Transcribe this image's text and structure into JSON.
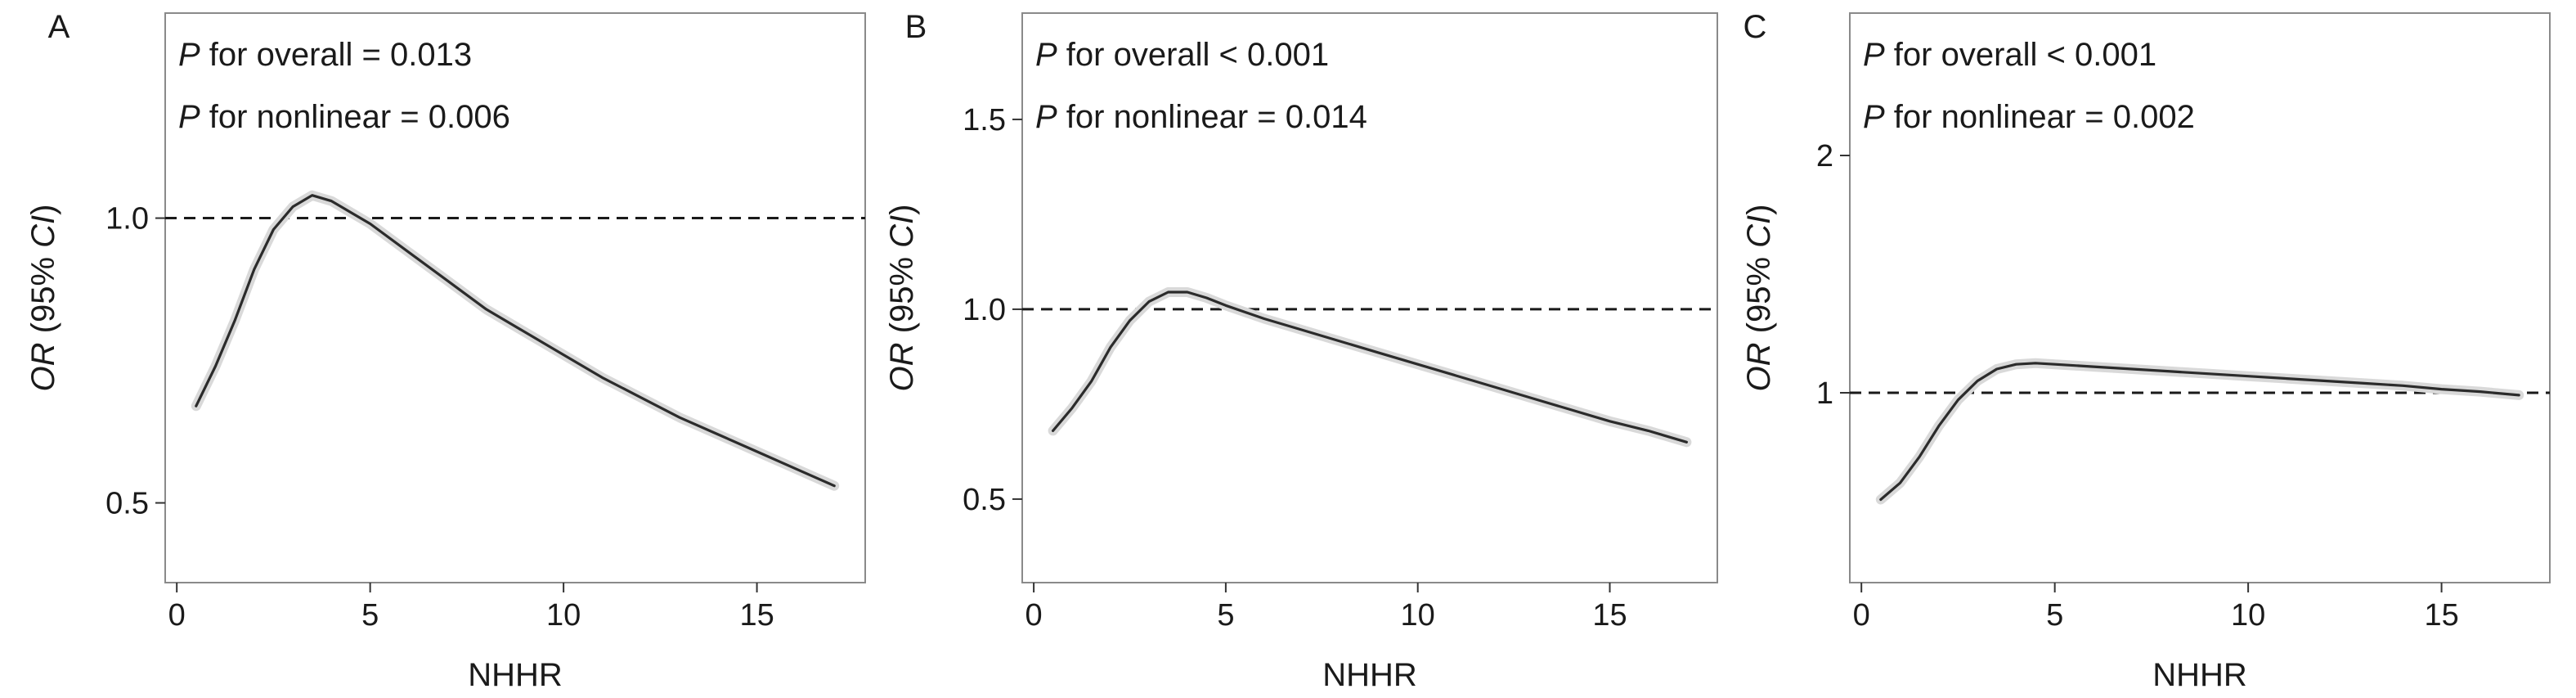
{
  "chart_data": [
    {
      "type": "line",
      "panel_label": "A",
      "xlabel": "NHHR",
      "ylabel_italic": "OR",
      "ylabel_rest": " (95% ",
      "ylabel_ci": "CI",
      "ylabel_close": ")",
      "ylim": [
        0.36,
        1.36
      ],
      "xlim": [
        -0.3,
        17.8
      ],
      "x_ticks": [
        0,
        5,
        10,
        15
      ],
      "y_ticks": [
        0.5,
        1.0
      ],
      "y_tick_labels": [
        "0.5",
        "1.0"
      ],
      "reference_line": 1.0,
      "annotation_p": "P",
      "annotations": [
        " for overall = 0.013",
        " for nonlinear = 0.006"
      ],
      "series": [
        {
          "x": [
            0.5,
            1.0,
            1.5,
            2.0,
            2.5,
            3.0,
            3.5,
            4.0,
            4.5,
            5.0,
            6.0,
            7.0,
            8.0,
            9.0,
            10.0,
            11.0,
            12.0,
            13.0,
            14.0,
            15.0,
            16.0,
            17.0
          ],
          "values": [
            0.67,
            0.74,
            0.82,
            0.91,
            0.98,
            1.02,
            1.04,
            1.03,
            1.01,
            0.99,
            0.94,
            0.89,
            0.84,
            0.8,
            0.76,
            0.72,
            0.685,
            0.65,
            0.62,
            0.59,
            0.56,
            0.53
          ]
        }
      ]
    },
    {
      "type": "line",
      "panel_label": "B",
      "xlabel": "NHHR",
      "ylabel_italic": "OR",
      "ylabel_rest": " (95% ",
      "ylabel_ci": "CI",
      "ylabel_close": ")",
      "ylim": [
        0.28,
        1.78
      ],
      "xlim": [
        -0.3,
        17.8
      ],
      "x_ticks": [
        0,
        5,
        10,
        15
      ],
      "y_ticks": [
        0.5,
        1.0,
        1.5
      ],
      "y_tick_labels": [
        "0.5",
        "1.0",
        "1.5"
      ],
      "reference_line": 1.0,
      "annotation_p": "P",
      "annotations": [
        " for overall < 0.001",
        " for nonlinear = 0.014"
      ],
      "series": [
        {
          "x": [
            0.5,
            1.0,
            1.5,
            2.0,
            2.5,
            3.0,
            3.5,
            4.0,
            4.5,
            5.0,
            6.0,
            7.0,
            8.0,
            9.0,
            10.0,
            11.0,
            12.0,
            13.0,
            14.0,
            15.0,
            16.0,
            17.0
          ],
          "values": [
            0.68,
            0.74,
            0.81,
            0.9,
            0.97,
            1.02,
            1.045,
            1.045,
            1.03,
            1.01,
            0.975,
            0.945,
            0.915,
            0.885,
            0.855,
            0.825,
            0.795,
            0.765,
            0.735,
            0.705,
            0.68,
            0.65
          ]
        }
      ]
    },
    {
      "type": "line",
      "panel_label": "C",
      "xlabel": "NHHR",
      "ylabel_italic": "OR",
      "ylabel_rest": " (95% ",
      "ylabel_ci": "CI",
      "ylabel_close": ")",
      "ylim": [
        0.2,
        2.6
      ],
      "xlim": [
        -0.3,
        17.8
      ],
      "x_ticks": [
        0,
        5,
        10,
        15
      ],
      "y_ticks": [
        1,
        2
      ],
      "y_tick_labels": [
        "1",
        "2"
      ],
      "reference_line": 1.0,
      "annotation_p": "P",
      "annotations": [
        " for overall < 0.001",
        " for nonlinear = 0.002"
      ],
      "series": [
        {
          "x": [
            0.5,
            1.0,
            1.5,
            2.0,
            2.5,
            3.0,
            3.5,
            4.0,
            4.5,
            5.0,
            6.0,
            7.0,
            8.0,
            9.0,
            10.0,
            11.0,
            12.0,
            13.0,
            14.0,
            15.0,
            16.0,
            17.0
          ],
          "values": [
            0.55,
            0.62,
            0.73,
            0.86,
            0.97,
            1.05,
            1.1,
            1.12,
            1.125,
            1.12,
            1.11,
            1.1,
            1.09,
            1.08,
            1.07,
            1.06,
            1.05,
            1.04,
            1.03,
            1.015,
            1.005,
            0.99
          ]
        }
      ]
    }
  ]
}
